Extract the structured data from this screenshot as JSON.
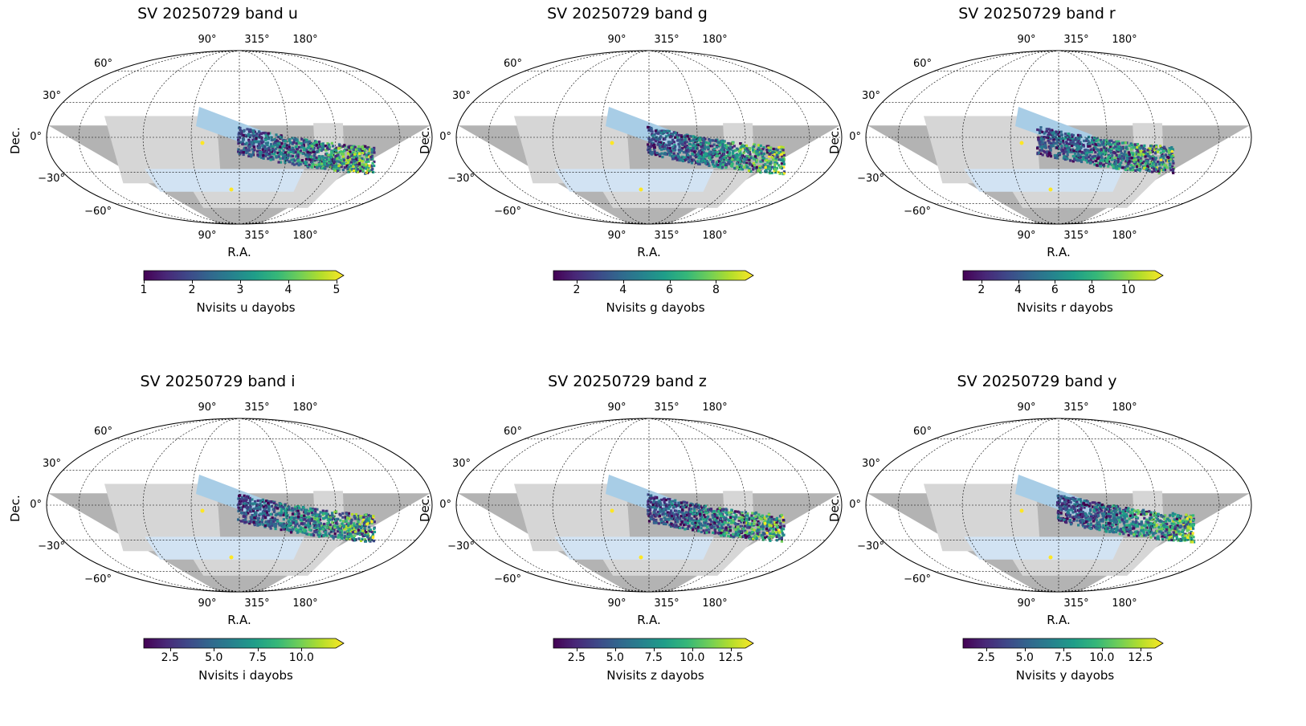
{
  "figure": {
    "panels": [
      {
        "title": "SV 20250729 band u",
        "ylabel": "Dec.",
        "xlabel": "R.A.",
        "cbar_label": "Nvisits u dayobs",
        "cbar_ticks": [
          "1",
          "2",
          "3",
          "4",
          "5"
        ],
        "cbar_range": [
          1,
          5
        ],
        "cbar_tick_values": [
          1,
          2,
          3,
          4,
          5
        ]
      },
      {
        "title": "SV 20250729 band g",
        "ylabel": "Dec.",
        "xlabel": "R.A.",
        "cbar_label": "Nvisits g dayobs",
        "cbar_ticks": [
          "2",
          "4",
          "6",
          "8"
        ],
        "cbar_range": [
          1,
          9.3
        ],
        "cbar_tick_values": [
          2,
          4,
          6,
          8
        ]
      },
      {
        "title": "SV 20250729 band r",
        "ylabel": "Dec.",
        "xlabel": "R.A.",
        "cbar_label": "Nvisits r dayobs",
        "cbar_ticks": [
          "2",
          "4",
          "6",
          "8",
          "10"
        ],
        "cbar_range": [
          1,
          11.5
        ],
        "cbar_tick_values": [
          2,
          4,
          6,
          8,
          10
        ]
      },
      {
        "title": "SV 20250729 band i",
        "ylabel": "Dec.",
        "xlabel": "R.A.",
        "cbar_label": "Nvisits i dayobs",
        "cbar_ticks": [
          "2.5",
          "5.0",
          "7.5",
          "10.0"
        ],
        "cbar_range": [
          1,
          12
        ],
        "cbar_tick_values": [
          2.5,
          5,
          7.5,
          10
        ]
      },
      {
        "title": "SV 20250729 band z",
        "ylabel": "Dec.",
        "xlabel": "R.A.",
        "cbar_label": "Nvisits z dayobs",
        "cbar_ticks": [
          "2.5",
          "5.0",
          "7.5",
          "10.0",
          "12.5"
        ],
        "cbar_range": [
          1,
          13.5
        ],
        "cbar_tick_values": [
          2.5,
          5,
          7.5,
          10,
          12.5
        ]
      },
      {
        "title": "SV 20250729 band y",
        "ylabel": "Dec.",
        "xlabel": "R.A.",
        "cbar_label": "Nvisits y dayobs",
        "cbar_ticks": [
          "2.5",
          "5.0",
          "7.5",
          "10.0",
          "12.5"
        ],
        "cbar_range": [
          1,
          13.5
        ],
        "cbar_tick_values": [
          2.5,
          5,
          7.5,
          10,
          12.5
        ]
      }
    ],
    "lon_ticks_top": [
      "90°",
      "315°",
      "180°"
    ],
    "lon_ticks_bottom": [
      "90°",
      "315°",
      "180°"
    ],
    "lat_ticks": [
      "60°",
      "30°",
      "0°",
      "−30°",
      "−60°"
    ],
    "projection": "mollweide",
    "colormap": "viridis",
    "colors": {
      "footprint_dark": "#b3b3b3",
      "footprint_light": "#d6d6d6",
      "planned_blue": "#a8cde6",
      "planned_blue_light": "#d2e3f3",
      "viridis": [
        "#440154",
        "#482878",
        "#3e4989",
        "#31688e",
        "#26828e",
        "#1f9e89",
        "#35b779",
        "#6ece58",
        "#b5de2b",
        "#fde725"
      ]
    }
  }
}
